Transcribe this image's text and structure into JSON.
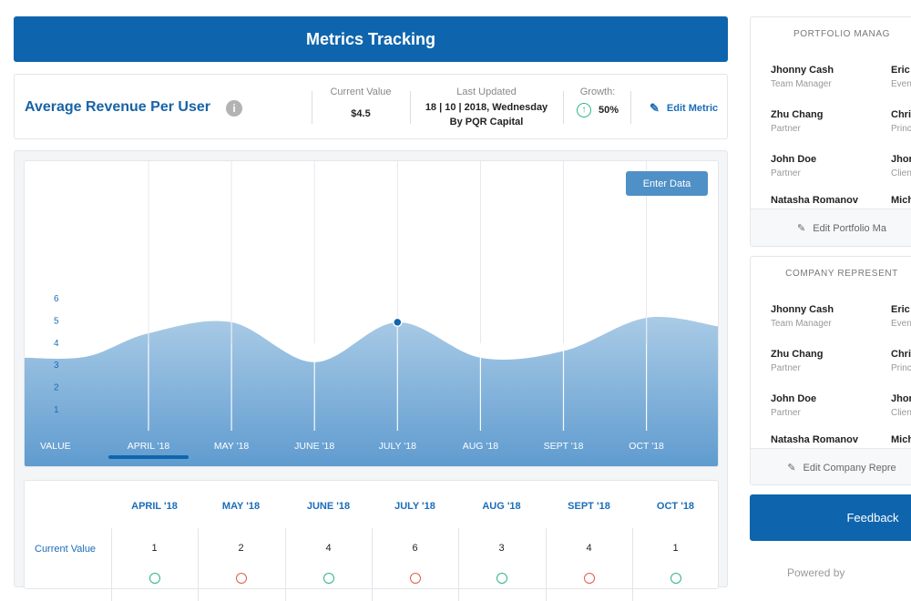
{
  "header": {
    "title": "Metrics Tracking"
  },
  "metric": {
    "title": "Average Revenue Per User",
    "info_glyph": "i",
    "current_value_label": "Current Value",
    "current_value": "$4.5",
    "last_updated_label": "Last Updated",
    "last_updated_line1": "18 | 10 | 2018, Wednesday",
    "last_updated_line2": "By PQR Capital",
    "growth_label": "Growth:",
    "growth_value": "50%",
    "edit_label": "Edit Metric"
  },
  "chart": {
    "enter_data_label": "Enter Data",
    "value_axis_label": "VALUE",
    "selected_month": "APRIL '18"
  },
  "chart_data": {
    "type": "area",
    "title": "",
    "xlabel": "VALUE",
    "ylabel": "",
    "categories": [
      "APRIL '18",
      "MAY '18",
      "JUNE '18",
      "JULY '18",
      "AUG '18",
      "SEPT '18",
      "OCT '18"
    ],
    "yticks": [
      "1",
      "2",
      "3",
      "4",
      "5",
      "6"
    ],
    "ylim": [
      0,
      6
    ],
    "series": [
      {
        "values": [
          4.4,
          4.9,
          3.1,
          4.9,
          3.3,
          3.6,
          5.1
        ]
      }
    ],
    "highlighted_point": {
      "category": "JULY '18",
      "value": 4.9
    },
    "grid": true
  },
  "table": {
    "columns": [
      "APRIL '18",
      "MAY '18",
      "JUNE '18",
      "JULY '18",
      "AUG '18",
      "SEPT '18",
      "OCT '18"
    ],
    "row_label": "Current Value",
    "values": [
      "1",
      "2",
      "4",
      "6",
      "3",
      "4",
      "1"
    ],
    "trend_colors": [
      "#2fb38a",
      "#e25c4a",
      "#2fb38a",
      "#e25c4a",
      "#2fb38a",
      "#e25c4a",
      "#2fb38a"
    ]
  },
  "portfolio": {
    "title": "PORTFOLIO MANAG",
    "people": [
      {
        "name": "Jhonny Cash",
        "role": "Team Manager"
      },
      {
        "name": "Eric",
        "role": "Even"
      },
      {
        "name": "Zhu Chang",
        "role": "Partner"
      },
      {
        "name": "Chri",
        "role": "Princ"
      },
      {
        "name": "John Doe",
        "role": "Partner"
      },
      {
        "name": "Jhon",
        "role": "Clien"
      },
      {
        "name": "Natasha Romanov",
        "role": ""
      },
      {
        "name": "Mich",
        "role": ""
      }
    ],
    "edit_label": "Edit Portfolio Ma"
  },
  "company": {
    "title": "COMPANY REPRESENT",
    "people": [
      {
        "name": "Jhonny Cash",
        "role": "Team Manager"
      },
      {
        "name": "Eric",
        "role": "Even"
      },
      {
        "name": "Zhu Chang",
        "role": "Partner"
      },
      {
        "name": "Chri",
        "role": "Princ"
      },
      {
        "name": "John Doe",
        "role": "Partner"
      },
      {
        "name": "Jhon",
        "role": "Clien"
      },
      {
        "name": "Natasha Romanov",
        "role": ""
      },
      {
        "name": "Mich",
        "role": ""
      }
    ],
    "edit_label": "Edit Company Repre"
  },
  "feedback_label": "Feedback",
  "powered_by": "Powered by",
  "icons": {
    "info": "info-icon",
    "growth": "arrow-up-circle-icon",
    "edit": "pencil-icon"
  },
  "colors": {
    "brand": "#0f65ad",
    "area": "#7fb0da",
    "positive": "#2fb38a",
    "negative": "#e25c4a"
  }
}
